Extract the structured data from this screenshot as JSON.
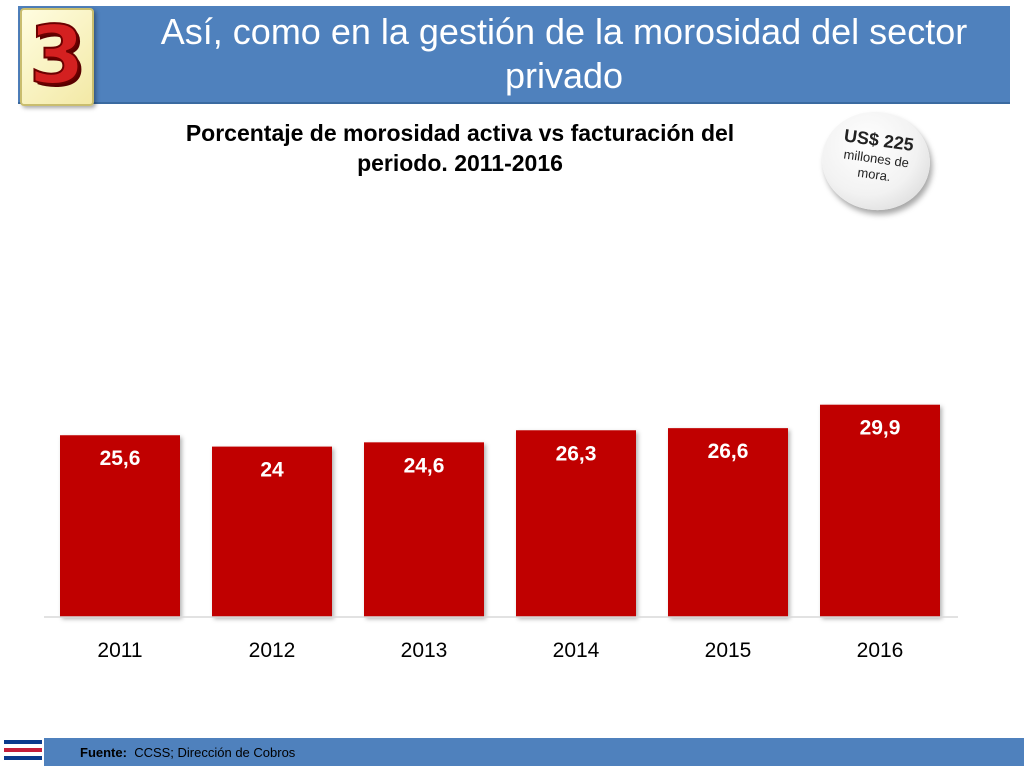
{
  "slide": {
    "badge_number": "3",
    "title": "Así, como en la gestión de la morosidad del sector privado"
  },
  "callout": {
    "amount": "US$ 225",
    "text": "millones de mora."
  },
  "footer": {
    "source_label": "Fuente:",
    "source_text": "CCSS; Dirección de Cobros"
  },
  "colors": {
    "bar": "#c00000",
    "header": "#4f81bd"
  },
  "chart_data": {
    "type": "bar",
    "title": "Porcentaje de morosidad activa vs facturación del periodo.  2011-2016",
    "categories": [
      "2011",
      "2012",
      "2013",
      "2014",
      "2015",
      "2016"
    ],
    "values": [
      25.6,
      24,
      24.6,
      26.3,
      26.6,
      29.9
    ],
    "data_labels": [
      "25,6",
      "24",
      "24,6",
      "26,3",
      "26,6",
      "29,9"
    ],
    "xlabel": "",
    "ylabel": "",
    "ylim": [
      0,
      30
    ],
    "grid": false,
    "legend": "none"
  }
}
